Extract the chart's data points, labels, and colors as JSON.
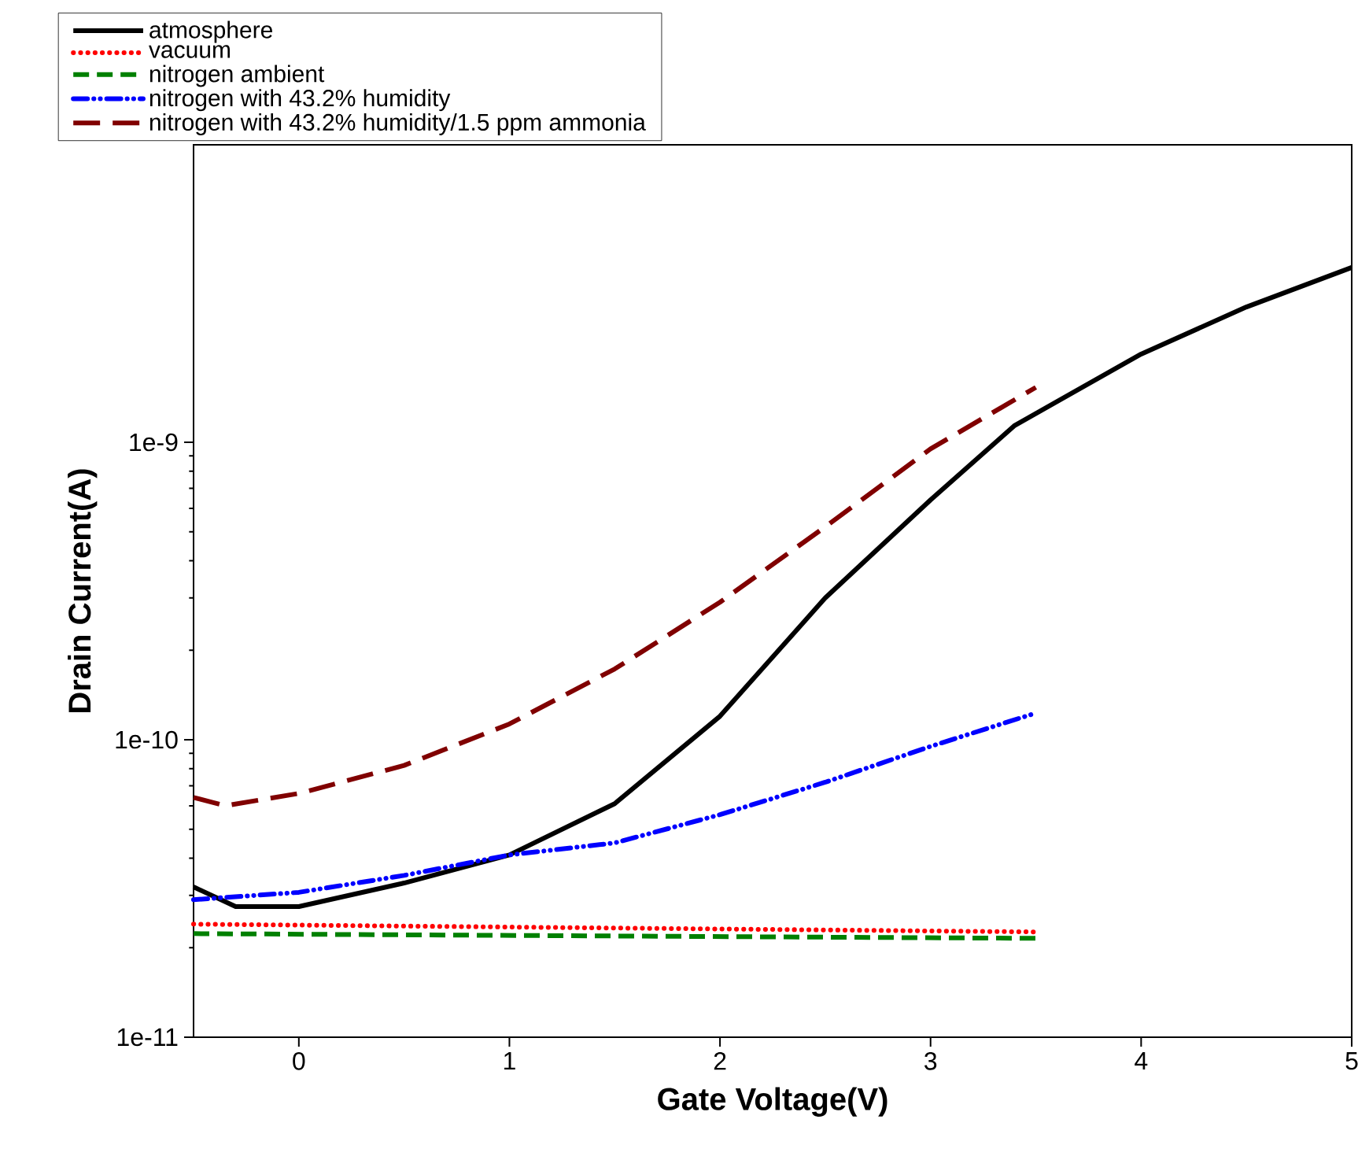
{
  "chart_data": {
    "type": "line",
    "xlabel": "Gate Voltage(V)",
    "ylabel": "Drain Current(A)",
    "log": "y",
    "xlim": [
      -0.5,
      5
    ],
    "xticks": [
      0,
      1,
      2,
      3,
      4,
      5
    ],
    "ylim": [
      1e-11,
      1e-08
    ],
    "yticks": [
      {
        "value": 1e-11,
        "label": "1e-11"
      },
      {
        "value": 1e-10,
        "label": "1e-10"
      },
      {
        "value": 1e-09,
        "label": "1e-9"
      }
    ],
    "legend": "top left",
    "grid": false,
    "marker": "none",
    "series": [
      {
        "name": "atmosphere",
        "color": "#000000",
        "line_style": "solid",
        "x": [
          -0.5,
          -0.3,
          0,
          0.5,
          1,
          1.5,
          2,
          2.5,
          3,
          3.4,
          4,
          4.5,
          5
        ],
        "values": [
          3.2e-11,
          2.75e-11,
          2.75e-11,
          3.3e-11,
          4.1e-11,
          6.1e-11,
          1.2e-10,
          3e-10,
          6.4e-10,
          1.14e-09,
          1.98e-09,
          2.85e-09,
          3.87e-09
        ]
      },
      {
        "name": "vacuum",
        "color": "#ff0000",
        "line_style": "dotted",
        "x": [
          -0.5,
          3.5
        ],
        "values": [
          2.4e-11,
          2.26e-11
        ]
      },
      {
        "name": "nitrogen ambient",
        "color": "#008000",
        "line_style": "dashed",
        "x": [
          -0.5,
          3.5
        ],
        "values": [
          2.23e-11,
          2.15e-11
        ]
      },
      {
        "name": "nitrogen with 43.2% humidity",
        "color": "#0000ff",
        "line_style": "dashdotdotted",
        "x": [
          -0.5,
          0,
          0.5,
          1,
          1.5,
          2,
          2.5,
          3,
          3.5
        ],
        "values": [
          2.9e-11,
          3.07e-11,
          3.5e-11,
          4.1e-11,
          4.5e-11,
          5.6e-11,
          7.2e-11,
          9.5e-11,
          1.23e-10
        ]
      },
      {
        "name": "nitrogen with 43.2% humidity/1.5 ppm ammonia",
        "color": "#800000",
        "line_style": "long dashed",
        "x": [
          -0.5,
          -0.35,
          0,
          0.5,
          1,
          1.5,
          2,
          2.5,
          3,
          3.5
        ],
        "values": [
          6.4e-11,
          6e-11,
          6.6e-11,
          8.2e-11,
          1.13e-10,
          1.73e-10,
          2.9e-10,
          5.2e-10,
          9.5e-10,
          1.53e-09
        ]
      }
    ]
  }
}
